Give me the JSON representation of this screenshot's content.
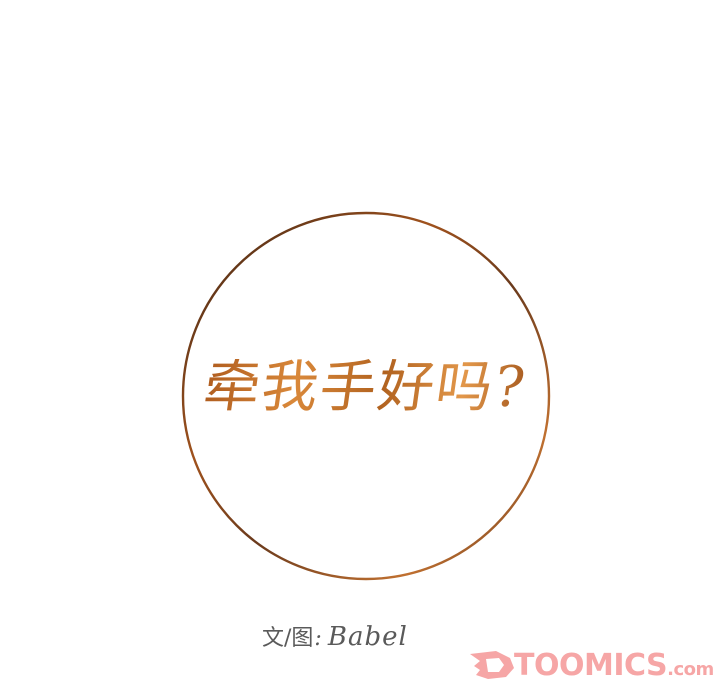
{
  "title_text": "牵我手好吗?",
  "credit": {
    "label": "文/图",
    "separator": ":",
    "author": "Babel"
  },
  "watermark": {
    "brand": "TOOMICS",
    "suffix": ".com"
  },
  "colors": {
    "ring": "#8a4a1c",
    "title": "#b8682a",
    "credit_text": "#5a5a5a",
    "watermark": "#f6a6a6"
  }
}
